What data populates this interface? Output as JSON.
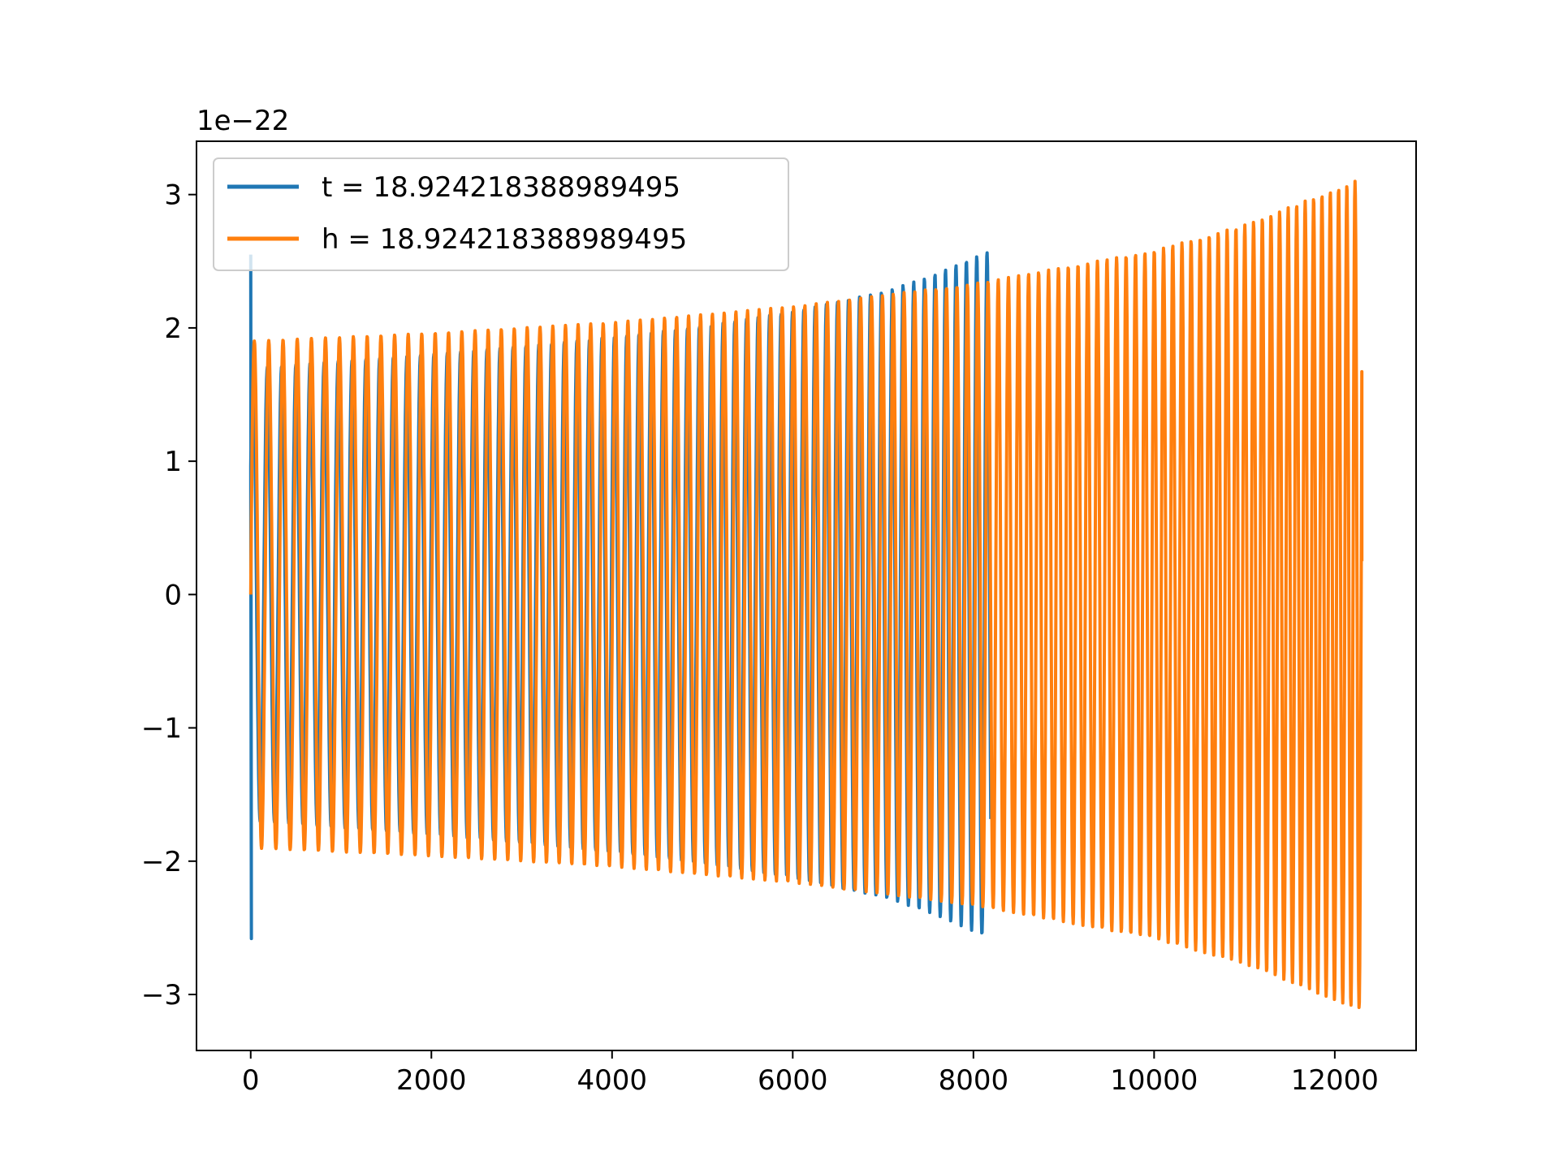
{
  "chart_data": {
    "type": "line",
    "title": "",
    "xlabel": "",
    "ylabel": "",
    "y_offset_text": "1e−22",
    "xlim": [
      -600,
      12900
    ],
    "ylim": [
      -3.42,
      3.4
    ],
    "x_ticks": [
      0,
      2000,
      4000,
      6000,
      8000,
      10000,
      12000
    ],
    "x_tick_labels": [
      "0",
      "2000",
      "4000",
      "6000",
      "8000",
      "10000",
      "12000"
    ],
    "y_ticks": [
      -3,
      -2,
      -1,
      0,
      1,
      2,
      3
    ],
    "y_tick_labels": [
      "−3",
      "−2",
      "−1",
      "0",
      "1",
      "2",
      "3"
    ],
    "grid": false,
    "legend_position": "upper-left",
    "series": [
      {
        "name": "t = 18.924218388989495",
        "color": "#1f77b4",
        "x_start": 0,
        "x_end": 8192,
        "initial_spike": [
          2.55,
          -2.58
        ],
        "envelope": [
          {
            "x": 100,
            "amp": 1.7
          },
          {
            "x": 1000,
            "amp": 1.75
          },
          {
            "x": 2000,
            "amp": 1.8
          },
          {
            "x": 3000,
            "amp": 1.86
          },
          {
            "x": 4000,
            "amp": 1.93
          },
          {
            "x": 5000,
            "amp": 2.01
          },
          {
            "x": 6000,
            "amp": 2.12
          },
          {
            "x": 7000,
            "amp": 2.27
          },
          {
            "x": 7500,
            "amp": 2.38
          },
          {
            "x": 8192,
            "amp": 2.58
          }
        ]
      },
      {
        "name": "h = 18.924218388989495",
        "color": "#ff7f0e",
        "x_start": 0,
        "x_end": 12300,
        "envelope": [
          {
            "x": 0,
            "amp": 1.9
          },
          {
            "x": 2000,
            "amp": 1.96
          },
          {
            "x": 4000,
            "amp": 2.04
          },
          {
            "x": 6000,
            "amp": 2.16
          },
          {
            "x": 8000,
            "amp": 2.33
          },
          {
            "x": 10000,
            "amp": 2.58
          },
          {
            "x": 11000,
            "amp": 2.77
          },
          {
            "x": 12000,
            "amp": 3.04
          },
          {
            "x": 12300,
            "amp": 3.12
          }
        ],
        "end_value": 0.25
      }
    ]
  }
}
